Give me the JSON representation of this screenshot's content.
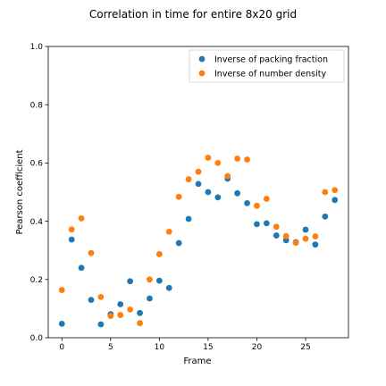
{
  "chart_data": {
    "type": "scatter",
    "title": "Correlation in time for entire 8x20 grid",
    "xlabel": "Frame",
    "ylabel": "Pearson coefficient",
    "xlim": [
      -1.4,
      29.4
    ],
    "ylim": [
      0.0,
      1.0
    ],
    "xticks": [
      0,
      5,
      10,
      15,
      20,
      25
    ],
    "yticks": [
      0.0,
      0.2,
      0.4,
      0.6,
      0.8,
      1.0
    ],
    "grid": false,
    "legend_position": "top-right",
    "series": [
      {
        "name": "Inverse of packing fraction",
        "color": "#1f77b4",
        "x": [
          0,
          1,
          2,
          3,
          4,
          5,
          6,
          7,
          8,
          9,
          10,
          11,
          12,
          13,
          14,
          15,
          16,
          17,
          18,
          19,
          20,
          21,
          22,
          23,
          24,
          25,
          26,
          27,
          28
        ],
        "y": [
          0.048,
          0.337,
          0.24,
          0.13,
          0.046,
          0.081,
          0.115,
          0.194,
          0.085,
          0.135,
          0.196,
          0.171,
          0.325,
          0.408,
          0.528,
          0.5,
          0.482,
          0.546,
          0.496,
          0.462,
          0.39,
          0.393,
          0.351,
          0.335,
          0.328,
          0.371,
          0.32,
          0.416,
          0.473
        ]
      },
      {
        "name": "Inverse of number density",
        "color": "#ff7f0e",
        "x": [
          0,
          1,
          2,
          3,
          4,
          5,
          6,
          7,
          8,
          9,
          10,
          11,
          12,
          13,
          14,
          15,
          16,
          17,
          18,
          19,
          20,
          21,
          22,
          23,
          24,
          25,
          26,
          27,
          28
        ],
        "y": [
          0.164,
          0.372,
          0.41,
          0.291,
          0.14,
          0.075,
          0.078,
          0.097,
          0.05,
          0.2,
          0.287,
          0.364,
          0.484,
          0.544,
          0.57,
          0.618,
          0.6,
          0.555,
          0.615,
          0.612,
          0.453,
          0.477,
          0.381,
          0.349,
          0.326,
          0.34,
          0.348,
          0.5,
          0.507
        ]
      }
    ]
  }
}
